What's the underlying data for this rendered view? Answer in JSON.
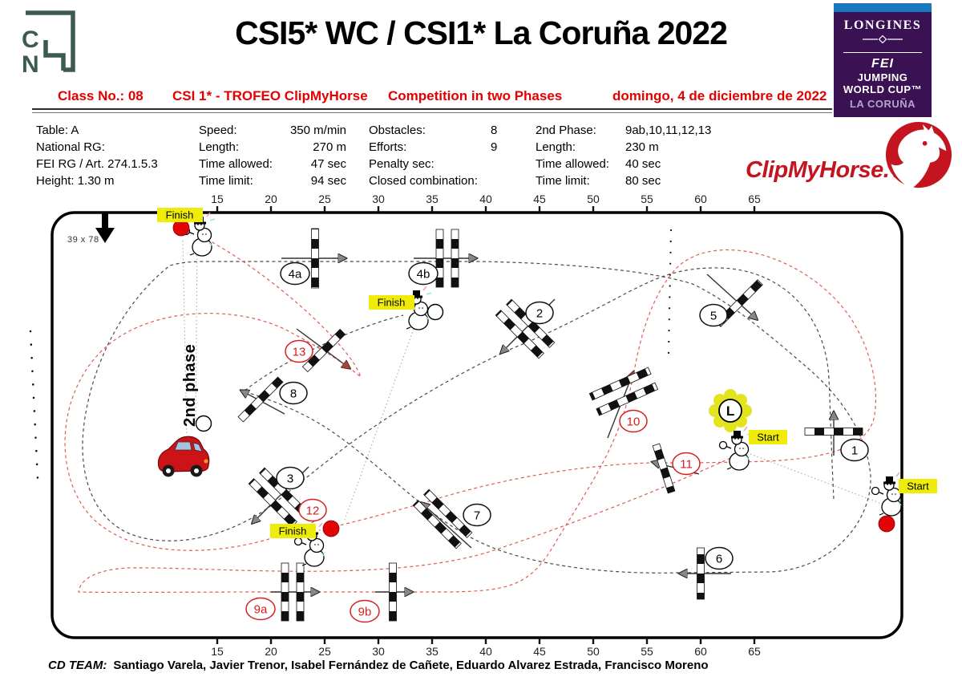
{
  "header": {
    "title": "CSI5* WC / CSI1* La Coruña 2022",
    "badge": {
      "brand": "LONGINES",
      "fei": "FEI",
      "line1": "JUMPING",
      "line2": "WORLD CUP™",
      "location": "LA CORUÑA"
    }
  },
  "class_line": {
    "class_no": "Class No.: 08",
    "class_name": "CSI 1* - TROFEO ClipMyHorse",
    "competition_type": "Competition in two Phases",
    "date": "domingo, 4 de diciembre de 2022"
  },
  "info": {
    "col1": [
      "Table: A",
      "National RG:",
      "FEI RG / Art. 274.1.5.3",
      "Height: 1.30 m"
    ],
    "col2": [
      {
        "label": "Speed:",
        "value": "350 m/min"
      },
      {
        "label": "Length:",
        "value": "270 m"
      },
      {
        "label": "Time allowed:",
        "value": "47 sec"
      },
      {
        "label": "Time limit:",
        "value": "94 sec"
      }
    ],
    "col3": [
      {
        "label": "Obstacles:",
        "value": "8"
      },
      {
        "label": "Efforts:",
        "value": "9"
      },
      {
        "label": "Penalty sec:",
        "value": ""
      },
      {
        "label": "Closed combination:",
        "value": ""
      }
    ],
    "col4": [
      {
        "label": "2nd Phase:",
        "value": "9ab,10,11,12,13"
      },
      {
        "label": "Length:",
        "value": "230 m"
      },
      {
        "label": "Time allowed:",
        "value": "40 sec"
      },
      {
        "label": "Time limit:",
        "value": "80 sec"
      }
    ]
  },
  "sponsor_logo": {
    "text": "ClipMyHorse.TV"
  },
  "course": {
    "arena_size": "39 x 78",
    "phase2_label": "2nd phase",
    "finish_label": "Finish",
    "start_label": "Start",
    "l_marker": "L",
    "ruler_values": [
      15,
      20,
      25,
      30,
      35,
      40,
      45,
      50,
      55,
      60,
      65
    ],
    "obstacles": [
      {
        "label": "1",
        "phase": 1
      },
      {
        "label": "2",
        "phase": 1
      },
      {
        "label": "3",
        "phase": 1
      },
      {
        "label": "4a",
        "phase": 1
      },
      {
        "label": "4b",
        "phase": 1
      },
      {
        "label": "5",
        "phase": 1
      },
      {
        "label": "6",
        "phase": 1
      },
      {
        "label": "7",
        "phase": 1
      },
      {
        "label": "8",
        "phase": 1
      },
      {
        "label": "9a",
        "phase": 2
      },
      {
        "label": "9b",
        "phase": 2
      },
      {
        "label": "10",
        "phase": 2
      },
      {
        "label": "11",
        "phase": 2
      },
      {
        "label": "12",
        "phase": 2
      },
      {
        "label": "13",
        "phase": 2
      }
    ]
  },
  "footer": {
    "cd_team_label": "CD TEAM:",
    "cd_team_names": "Santiago Varela,  Javier Trenor, Isabel Fernández de Cañete,  Eduardo Alvarez Estrada, Francisco Moreno"
  },
  "colors": {
    "accent_red": "#e30000",
    "course_phase2_red": "#e05c55",
    "badge_purple": "#3a1152",
    "badge_blue": "#1878be",
    "badge_lavender": "#b5a3cf",
    "highlight_yellow": "#f0ec0a",
    "logo_green": "#3c5b50",
    "sponsor_red": "#c41420"
  }
}
